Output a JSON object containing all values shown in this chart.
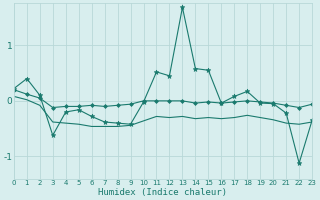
{
  "xlabel": "Humidex (Indice chaleur)",
  "xlim": [
    0,
    23
  ],
  "ylim": [
    -1.4,
    1.75
  ],
  "yticks": [
    -1,
    0,
    1
  ],
  "xticks": [
    0,
    1,
    2,
    3,
    4,
    5,
    6,
    7,
    8,
    9,
    10,
    11,
    12,
    13,
    14,
    15,
    16,
    17,
    18,
    19,
    20,
    21,
    22,
    23
  ],
  "bg_color": "#d8eeee",
  "line_color": "#1a7a6e",
  "grid_color": "#b8d8d8",
  "series1_y": [
    0.22,
    0.4,
    0.1,
    -0.62,
    -0.2,
    -0.16,
    -0.28,
    -0.38,
    -0.4,
    -0.42,
    -0.02,
    0.52,
    0.45,
    1.68,
    0.58,
    0.55,
    -0.04,
    0.08,
    0.17,
    -0.04,
    -0.05,
    -0.22,
    -1.12,
    -0.35
  ],
  "series2_y": [
    0.2,
    0.12,
    0.05,
    -0.12,
    -0.1,
    -0.1,
    -0.08,
    -0.1,
    -0.08,
    -0.06,
    0.0,
    0.0,
    0.0,
    0.0,
    -0.04,
    -0.02,
    -0.04,
    -0.02,
    0.0,
    -0.02,
    -0.04,
    -0.08,
    -0.12,
    -0.06
  ],
  "series3_y": [
    0.08,
    0.02,
    -0.08,
    -0.38,
    -0.4,
    -0.42,
    -0.46,
    -0.46,
    -0.46,
    -0.44,
    -0.36,
    -0.28,
    -0.3,
    -0.28,
    -0.32,
    -0.3,
    -0.32,
    -0.3,
    -0.26,
    -0.3,
    -0.34,
    -0.4,
    -0.42,
    -0.38
  ]
}
